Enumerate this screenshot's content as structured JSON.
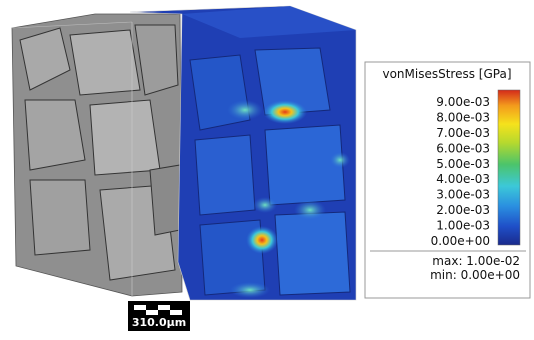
{
  "legend": {
    "title": "vonMisesStress [GPa]",
    "ticks": [
      "9.00e-03",
      "8.00e-03",
      "7.00e-03",
      "6.00e-03",
      "5.00e-03",
      "4.00e-03",
      "3.00e-03",
      "2.00e-03",
      "1.00e-03",
      "0.00e+00"
    ],
    "max": "max: 1.00e-02",
    "min": "min: 0.00e+00"
  },
  "scale_bar": {
    "label": "310.0µm"
  }
}
